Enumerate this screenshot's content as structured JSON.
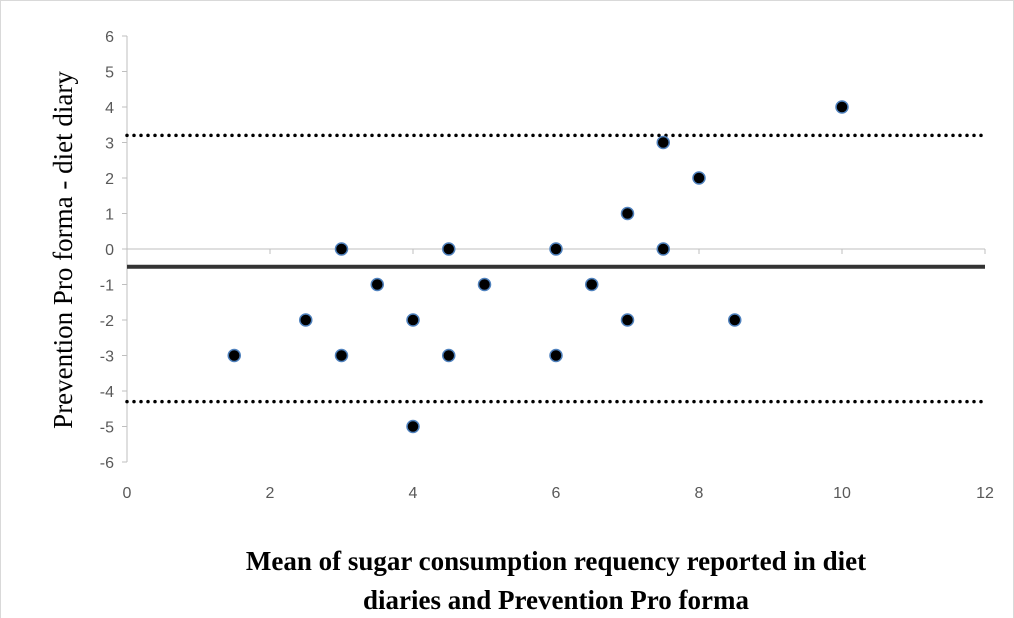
{
  "chart_data": {
    "type": "scatter",
    "title": "",
    "ylabel": "Prevention Pro forma - diet diary",
    "xlabel_lines": [
      "Mean of sugar consumption requency reported in diet",
      "diaries and Prevention Pro forma"
    ],
    "xlim": [
      0,
      12
    ],
    "ylim": [
      -6,
      6
    ],
    "x_ticks": [
      0,
      2,
      4,
      6,
      8,
      10,
      12
    ],
    "y_ticks": [
      6,
      5,
      4,
      3,
      2,
      1,
      0,
      -1,
      -2,
      -3,
      -4,
      -5,
      -6
    ],
    "grid": false,
    "legend": "none",
    "points": [
      {
        "x": 1.5,
        "y": -3
      },
      {
        "x": 2.5,
        "y": -2
      },
      {
        "x": 3,
        "y": 0
      },
      {
        "x": 3,
        "y": -3
      },
      {
        "x": 3.5,
        "y": -1
      },
      {
        "x": 4,
        "y": -2
      },
      {
        "x": 4,
        "y": -5
      },
      {
        "x": 4.5,
        "y": 0
      },
      {
        "x": 4.5,
        "y": -3
      },
      {
        "x": 5,
        "y": -1
      },
      {
        "x": 6,
        "y": 0
      },
      {
        "x": 6,
        "y": -3
      },
      {
        "x": 6.5,
        "y": -1
      },
      {
        "x": 7,
        "y": 1
      },
      {
        "x": 7,
        "y": -2
      },
      {
        "x": 7.5,
        "y": 3
      },
      {
        "x": 7.5,
        "y": 0
      },
      {
        "x": 8,
        "y": 2
      },
      {
        "x": 8.5,
        "y": -2
      },
      {
        "x": 10,
        "y": 4
      }
    ],
    "reference_lines": [
      {
        "kind": "mean",
        "y": -0.5,
        "style": "solid"
      },
      {
        "kind": "upper-limit",
        "y": 3.2,
        "style": "dotted"
      },
      {
        "kind": "lower-limit",
        "y": -4.3,
        "style": "dotted"
      }
    ],
    "colors": {
      "marker_fill": "#000000",
      "marker_edge": "#4f81bd",
      "axis": "#bfbfbf",
      "mean_line": "#333333",
      "limit_line": "#000000",
      "tick_text": "#595959"
    }
  }
}
